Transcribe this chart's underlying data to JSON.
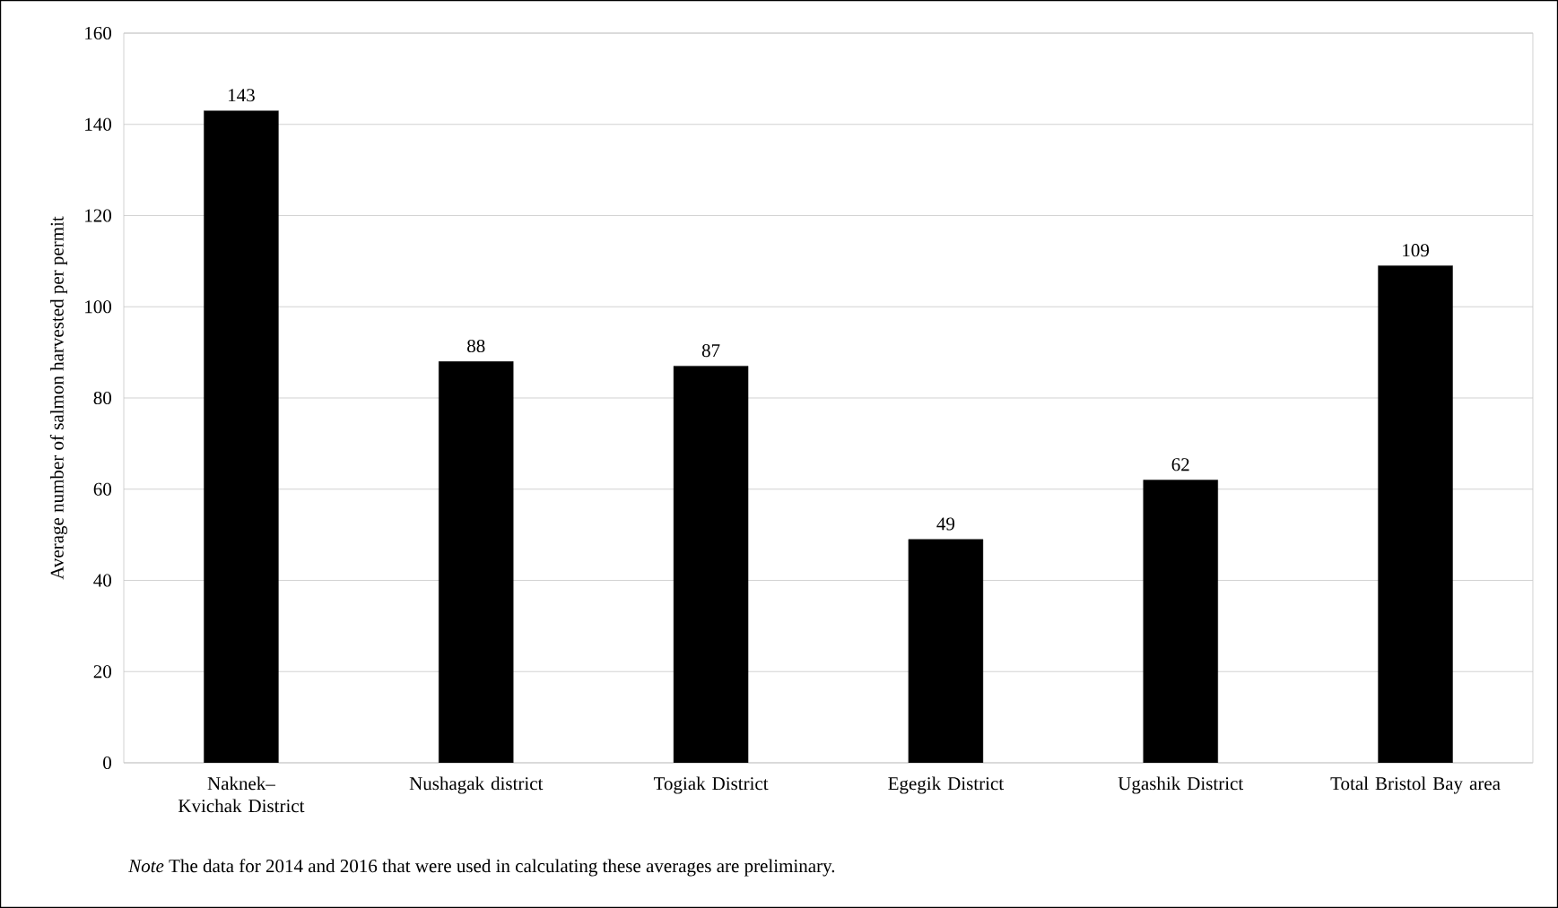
{
  "chart_data": {
    "type": "bar",
    "ylabel": "Average number of salmon harvested per permit",
    "categories": [
      "Naknek–Kvichak District",
      "Nushagak district",
      "Togiak District",
      "Egegik District",
      "Ugashik District",
      "Total Bristol Bay area"
    ],
    "values": [
      143,
      88,
      87,
      49,
      62,
      109
    ],
    "color": "#000000",
    "data_labels": true,
    "ylim": [
      0,
      160
    ],
    "yticks": [
      0,
      20,
      40,
      60,
      80,
      100,
      120,
      140,
      160
    ],
    "grid": "y",
    "annotations": [
      "*Note* The data for 2014 and 2016 that were used in calculating these averages are preliminary."
    ]
  }
}
